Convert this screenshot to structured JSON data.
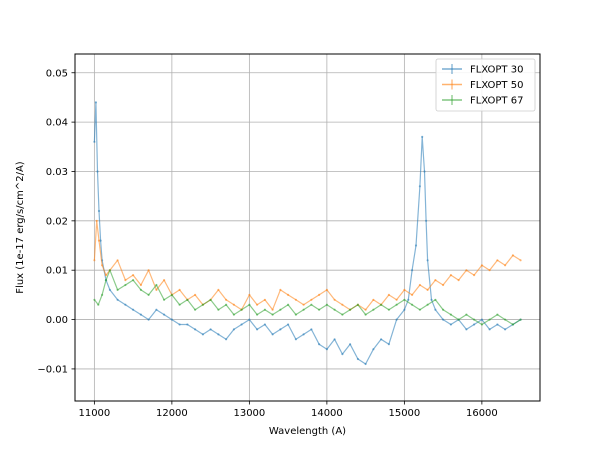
{
  "chart_data": {
    "type": "line",
    "title": "",
    "xlabel": "Wavelength (A)",
    "ylabel": "Flux (1e-17 erg/s/cm^2/A)",
    "xlim": [
      10750,
      16750
    ],
    "ylim": [
      -0.0165,
      0.0538
    ],
    "xticks": [
      11000,
      12000,
      13000,
      14000,
      15000,
      16000
    ],
    "yticks": [
      -0.01,
      0.0,
      0.01,
      0.02,
      0.03,
      0.04,
      0.05
    ],
    "xtick_labels": [
      "11000",
      "12000",
      "13000",
      "14000",
      "15000",
      "16000"
    ],
    "ytick_labels": [
      "−0.01",
      "0.00",
      "0.01",
      "0.02",
      "0.03",
      "0.04",
      "0.05"
    ],
    "grid": true,
    "legend_position": "top-right",
    "series": [
      {
        "name": "FLXOPT 30",
        "color": "#1f77b4",
        "x": [
          11000,
          11020,
          11040,
          11060,
          11080,
          11100,
          11150,
          11200,
          11300,
          11400,
          11500,
          11600,
          11700,
          11800,
          11900,
          12000,
          12100,
          12200,
          12300,
          12400,
          12500,
          12600,
          12700,
          12800,
          12900,
          13000,
          13100,
          13200,
          13300,
          13400,
          13500,
          13600,
          13700,
          13800,
          13900,
          14000,
          14100,
          14200,
          14300,
          14400,
          14500,
          14600,
          14700,
          14800,
          14900,
          15000,
          15050,
          15100,
          15150,
          15200,
          15230,
          15260,
          15280,
          15300,
          15350,
          15400,
          15500,
          15600,
          15700,
          15800,
          15900,
          16000,
          16100,
          16200,
          16300,
          16400,
          16500
        ],
        "y": [
          0.036,
          0.044,
          0.03,
          0.022,
          0.016,
          0.012,
          0.008,
          0.006,
          0.004,
          0.003,
          0.002,
          0.001,
          0.0,
          0.002,
          0.001,
          0.0,
          -0.001,
          -0.001,
          -0.002,
          -0.003,
          -0.002,
          -0.003,
          -0.004,
          -0.002,
          -0.001,
          0.0,
          -0.002,
          -0.001,
          -0.003,
          -0.002,
          -0.001,
          -0.004,
          -0.003,
          -0.002,
          -0.005,
          -0.006,
          -0.004,
          -0.007,
          -0.005,
          -0.008,
          -0.009,
          -0.006,
          -0.004,
          -0.005,
          0.0,
          0.002,
          0.004,
          0.01,
          0.015,
          0.027,
          0.037,
          0.03,
          0.02,
          0.012,
          0.004,
          0.002,
          0.0,
          -0.001,
          0.0,
          -0.002,
          -0.001,
          0.0,
          -0.002,
          -0.001,
          -0.002,
          -0.001,
          0.0
        ]
      },
      {
        "name": "FLXOPT 50",
        "color": "#ff7f0e",
        "x": [
          11000,
          11030,
          11060,
          11100,
          11150,
          11200,
          11300,
          11400,
          11500,
          11600,
          11700,
          11800,
          11900,
          12000,
          12100,
          12200,
          12300,
          12400,
          12500,
          12600,
          12700,
          12800,
          12900,
          13000,
          13100,
          13200,
          13300,
          13400,
          13500,
          13600,
          13700,
          13800,
          13900,
          14000,
          14100,
          14200,
          14300,
          14400,
          14500,
          14600,
          14700,
          14800,
          14900,
          15000,
          15100,
          15200,
          15300,
          15400,
          15500,
          15600,
          15700,
          15800,
          15900,
          16000,
          16100,
          16200,
          16300,
          16400,
          16500
        ],
        "y": [
          0.012,
          0.02,
          0.016,
          0.011,
          0.009,
          0.01,
          0.012,
          0.008,
          0.009,
          0.007,
          0.01,
          0.006,
          0.008,
          0.005,
          0.006,
          0.004,
          0.005,
          0.003,
          0.004,
          0.006,
          0.004,
          0.003,
          0.002,
          0.005,
          0.003,
          0.004,
          0.002,
          0.006,
          0.005,
          0.004,
          0.003,
          0.004,
          0.005,
          0.006,
          0.004,
          0.003,
          0.002,
          0.003,
          0.002,
          0.004,
          0.003,
          0.005,
          0.004,
          0.006,
          0.005,
          0.007,
          0.006,
          0.008,
          0.007,
          0.009,
          0.008,
          0.01,
          0.009,
          0.011,
          0.01,
          0.012,
          0.011,
          0.013,
          0.012
        ]
      },
      {
        "name": "FLXOPT 67",
        "color": "#2ca02c",
        "x": [
          11000,
          11050,
          11100,
          11150,
          11200,
          11300,
          11400,
          11500,
          11600,
          11700,
          11800,
          11900,
          12000,
          12100,
          12200,
          12300,
          12400,
          12500,
          12600,
          12700,
          12800,
          12900,
          13000,
          13100,
          13200,
          13300,
          13400,
          13500,
          13600,
          13700,
          13800,
          13900,
          14000,
          14100,
          14200,
          14300,
          14400,
          14500,
          14600,
          14700,
          14800,
          14900,
          15000,
          15100,
          15200,
          15300,
          15400,
          15500,
          15600,
          15700,
          15800,
          15900,
          16000,
          16100,
          16200,
          16300,
          16400,
          16500
        ],
        "y": [
          0.004,
          0.003,
          0.005,
          0.008,
          0.01,
          0.006,
          0.007,
          0.008,
          0.006,
          0.005,
          0.007,
          0.004,
          0.005,
          0.003,
          0.004,
          0.002,
          0.003,
          0.004,
          0.002,
          0.003,
          0.001,
          0.002,
          0.003,
          0.001,
          0.002,
          0.001,
          0.002,
          0.003,
          0.001,
          0.002,
          0.003,
          0.002,
          0.003,
          0.002,
          0.001,
          0.002,
          0.003,
          0.001,
          0.002,
          0.003,
          0.002,
          0.003,
          0.004,
          0.003,
          0.002,
          0.003,
          0.004,
          0.002,
          0.001,
          0.0,
          0.001,
          0.0,
          -0.001,
          0.0,
          0.001,
          0.0,
          -0.001,
          0.0
        ]
      }
    ]
  }
}
